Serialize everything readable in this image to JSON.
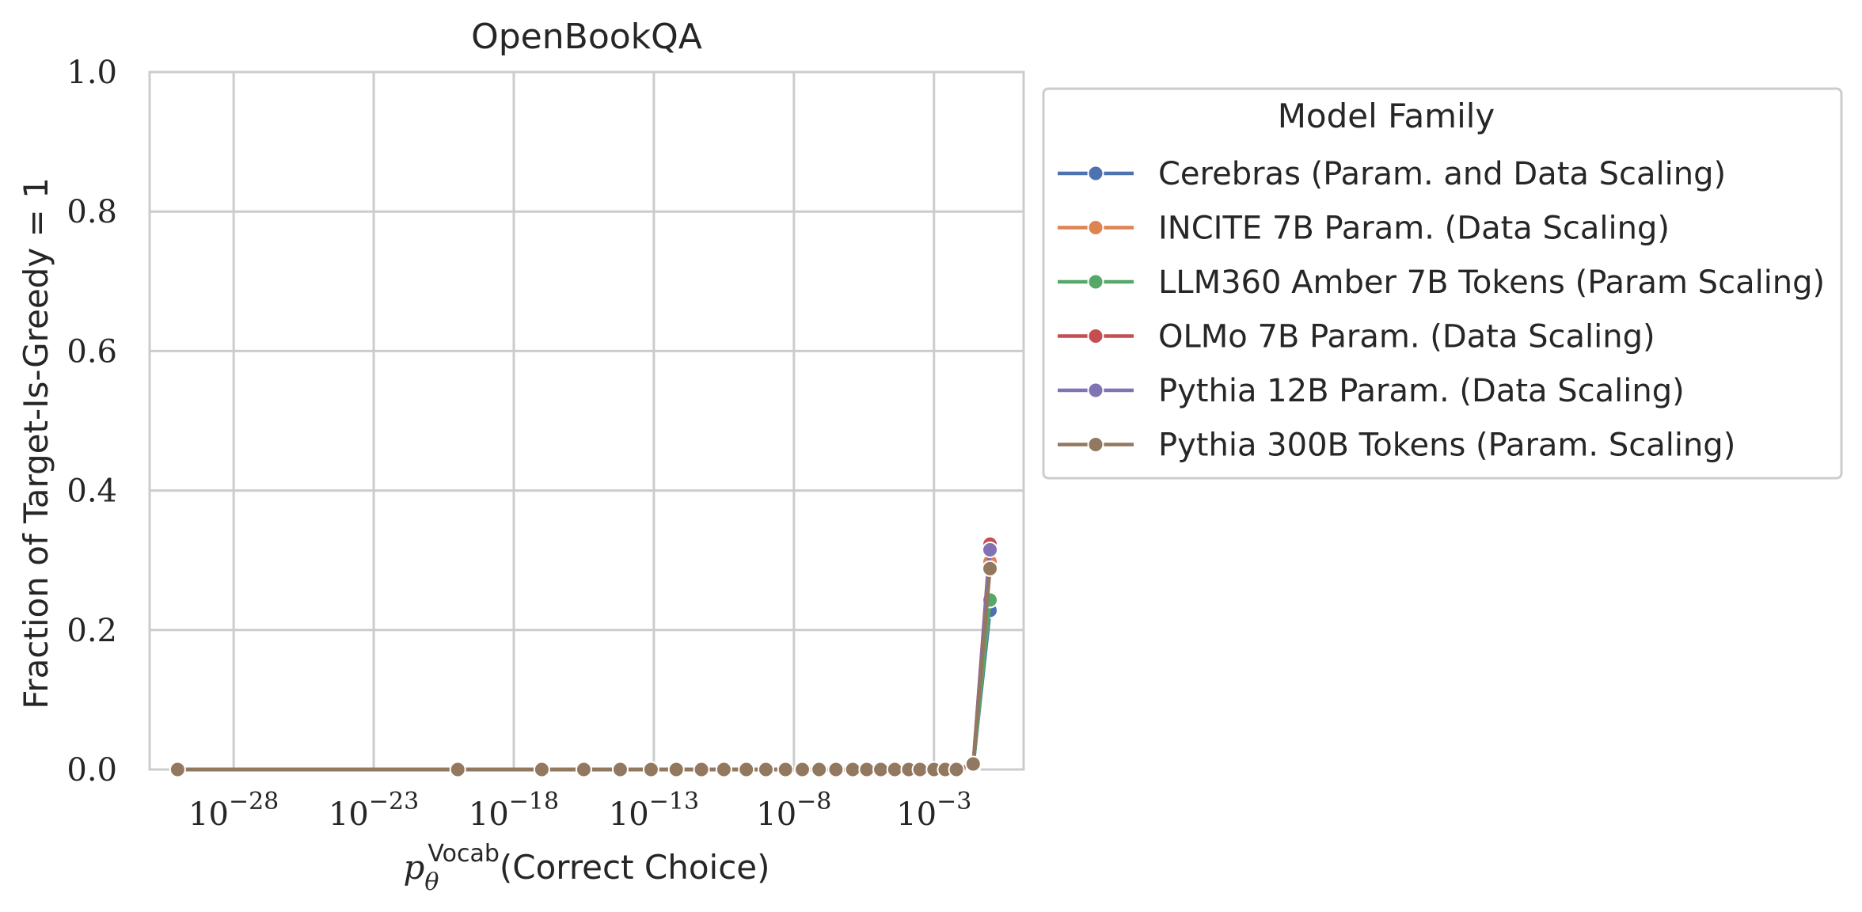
{
  "chart_data": {
    "type": "line",
    "title": "OpenBookQA",
    "ylabel": "Fraction of Target-Is-Greedy = 1",
    "xlabel": {
      "base": "p",
      "subscript": "θ",
      "superscript": "Vocab",
      "rest": "(Correct Choice)"
    },
    "x_scale": "log",
    "xlim_exponent": [
      -31,
      0.2
    ],
    "ylim": [
      0.0,
      1.0
    ],
    "x_ticks": [
      {
        "base": "10",
        "exp": "−28",
        "exponent": -28
      },
      {
        "base": "10",
        "exp": "−23",
        "exponent": -23
      },
      {
        "base": "10",
        "exp": "−18",
        "exponent": -18
      },
      {
        "base": "10",
        "exp": "−13",
        "exponent": -13
      },
      {
        "base": "10",
        "exp": "−8",
        "exponent": -8
      },
      {
        "base": "10",
        "exp": "−3",
        "exponent": -3
      }
    ],
    "y_ticks": [
      {
        "label": "0.0",
        "value": 0.0
      },
      {
        "label": "0.2",
        "value": 0.2
      },
      {
        "label": "0.4",
        "value": 0.4
      },
      {
        "label": "0.6",
        "value": 0.6
      },
      {
        "label": "0.8",
        "value": 0.8
      },
      {
        "label": "1.0",
        "value": 1.0
      }
    ],
    "grid": true,
    "legend": {
      "title": "Model Family",
      "placement": "outside-right-top"
    },
    "x_exponents": [
      -30,
      -20,
      -17,
      -15.5,
      -14.2,
      -13.1,
      -12.2,
      -11.3,
      -10.5,
      -9.7,
      -9.0,
      -8.3,
      -7.7,
      -7.1,
      -6.5,
      -5.9,
      -5.4,
      -4.9,
      -4.4,
      -3.9,
      -3.5,
      -3.0,
      -2.6,
      -2.2,
      -1.6,
      -1.0
    ],
    "series": [
      {
        "name": "Cerebras (Param. and Data Scaling)",
        "color": "#4c72b0",
        "values": [
          0,
          0,
          0,
          0,
          0,
          0,
          0,
          0,
          0,
          0,
          0,
          0,
          0,
          0,
          0,
          0,
          0,
          0,
          0,
          0,
          0,
          0,
          0,
          0,
          0.006,
          0.228
        ]
      },
      {
        "name": "INCITE 7B Param. (Data Scaling)",
        "color": "#dd8452",
        "values": [
          0,
          0,
          0,
          0,
          0,
          0,
          0,
          0,
          0,
          0,
          0,
          0,
          0,
          0,
          0,
          0,
          0,
          0,
          0,
          0,
          0,
          0,
          0,
          0,
          0.006,
          0.298
        ]
      },
      {
        "name": "LLM360 Amber 7B Tokens (Param Scaling)",
        "color": "#55a868",
        "values": [
          0,
          0,
          0,
          0,
          0,
          0,
          0,
          0,
          0,
          0,
          0,
          0,
          0,
          0,
          0,
          0,
          0,
          0,
          0,
          0,
          0,
          0,
          0,
          0,
          0.005,
          0.243
        ]
      },
      {
        "name": "OLMo 7B Param. (Data Scaling)",
        "color": "#c44e52",
        "values": [
          0,
          0,
          0,
          0,
          0,
          0,
          0,
          0,
          0,
          0,
          0,
          0,
          0,
          0,
          0,
          0,
          0,
          0,
          0,
          0,
          0,
          0,
          0,
          0,
          0.007,
          0.323
        ]
      },
      {
        "name": "Pythia 12B Param. (Data Scaling)",
        "color": "#8172b3",
        "values": [
          0,
          0,
          0,
          0,
          0,
          0,
          0,
          0,
          0,
          0,
          0,
          0,
          0,
          0,
          0,
          0,
          0,
          0,
          0,
          0,
          0,
          0,
          0,
          0,
          0.006,
          0.315
        ]
      },
      {
        "name": "Pythia 300B Tokens (Param. Scaling)",
        "color": "#937860",
        "values": [
          0,
          0,
          0,
          0,
          0,
          0,
          0,
          0,
          0,
          0,
          0,
          0,
          0,
          0,
          0,
          0,
          0,
          0,
          0,
          0,
          0,
          0,
          0,
          0,
          0.008,
          0.288
        ]
      }
    ]
  }
}
